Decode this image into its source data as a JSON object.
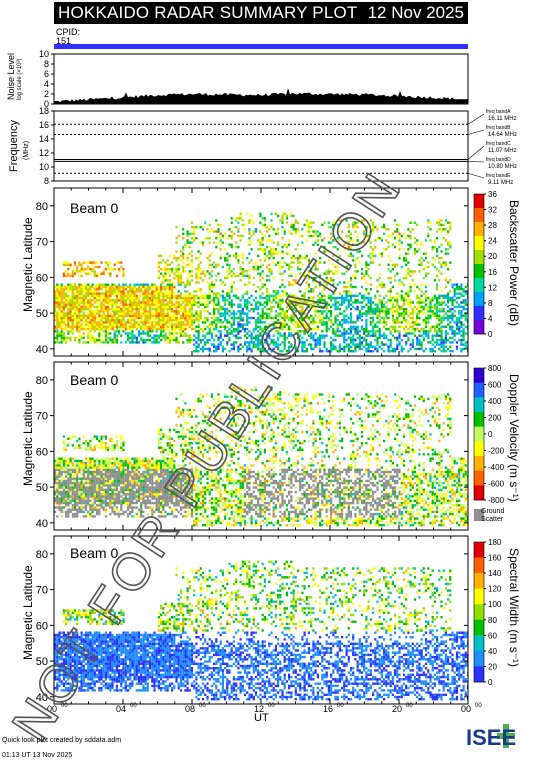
{
  "header": {
    "title": "HOKKAIDO RADAR SUMMARY PLOT",
    "date": "12 Nov 2025",
    "cpid_label": "CPID:",
    "cpid_value": "151"
  },
  "noise_panel": {
    "ylabel": "Noise Level",
    "ylabel_sub": "log scale (×10³)",
    "ticks": [
      "10",
      "8",
      "6",
      "4",
      "2",
      "0"
    ]
  },
  "freq_panel": {
    "ylabel": "Frequency",
    "ylabel_unit": "(MHz)",
    "ticks": [
      "18",
      "16",
      "14",
      "12",
      "10",
      "8"
    ],
    "bands": [
      {
        "name": "freq bandA",
        "value": "16.11 MHz"
      },
      {
        "name": "freq bandB",
        "value": "14.64 MHz"
      },
      {
        "name": "freq bandC",
        "value": "11.07 MHz"
      },
      {
        "name": "freq bandD",
        "value": "10.80 MHz"
      },
      {
        "name": "freq bandE",
        "value": "9.11 MHz"
      }
    ]
  },
  "panels": [
    {
      "beam": "Beam  0",
      "ylabel": "Magnetic Latitude",
      "colorbar_label": "Backscatter Power (dB)",
      "ticks": [
        "36",
        "32",
        "28",
        "24",
        "20",
        "16",
        "12",
        "8",
        "4",
        "0"
      ]
    },
    {
      "beam": "Beam  0",
      "ylabel": "Magnetic Latitude",
      "colorbar_label": "Doppler Velocity (m s⁻¹)",
      "ticks": [
        "800",
        "600",
        "400",
        "200",
        "0",
        "-200",
        "-400",
        "-600",
        "-800"
      ],
      "ground_label": "Ground",
      "ground_label2": "Scatter"
    },
    {
      "beam": "Beam  0",
      "ylabel": "Magnetic Latitude",
      "colorbar_label": "Spectral Width (m s⁻¹)",
      "ticks": [
        "180",
        "160",
        "140",
        "120",
        "100",
        "80",
        "60",
        "40",
        "20",
        "0"
      ]
    }
  ],
  "lat_ticks": [
    "80",
    "70",
    "60",
    "50",
    "40"
  ],
  "xaxis": {
    "ticks": [
      "00",
      "04",
      "08",
      "12",
      "16",
      "20",
      "00"
    ],
    "tick_sup": "00",
    "label": "UT"
  },
  "watermark": "NOT FOR PUBLICATION",
  "footer": {
    "line1": "Quick look plot created by sddata.adm",
    "line2": "01:13 UT 13 Nov 2025"
  },
  "logo": {
    "text": "ISEE"
  },
  "colors": {
    "power": [
      "#7800d8",
      "#3030ff",
      "#00a0ff",
      "#00d8a0",
      "#00c000",
      "#a0e000",
      "#ffff00",
      "#ffb000",
      "#ff6000",
      "#e00000"
    ],
    "velocity": [
      "#e00000",
      "#ff6000",
      "#ffb000",
      "#ffff00",
      "#c0ff60",
      "#00c000",
      "#00c0c0",
      "#2060ff",
      "#3000d0"
    ],
    "width": [
      "#3030ff",
      "#2090ff",
      "#00c0c0",
      "#00c000",
      "#90e000",
      "#ffff00",
      "#ffb000",
      "#ff6000",
      "#e00000"
    ],
    "ground": "#909090"
  },
  "chart_data": [
    {
      "type": "area",
      "title": "",
      "ylabel": "Noise Level",
      "xlim": [
        0,
        24
      ],
      "ylim": [
        0,
        10
      ],
      "x": [
        0,
        2,
        4,
        6,
        8,
        10,
        12,
        14,
        16,
        18,
        20,
        22,
        24
      ],
      "values": [
        0.5,
        0.9,
        1.3,
        1.8,
        2.0,
        1.9,
        1.8,
        2.1,
        2.0,
        1.9,
        1.6,
        1.3,
        0.9
      ]
    },
    {
      "type": "line",
      "ylabel": "Frequency",
      "ylim": [
        8,
        18
      ],
      "series": [
        {
          "name": "freq bandA",
          "values": [
            16.11
          ]
        },
        {
          "name": "freq bandB",
          "values": [
            14.64
          ]
        },
        {
          "name": "freq bandC",
          "values": [
            11.07
          ]
        },
        {
          "name": "freq bandD",
          "values": [
            10.8
          ]
        },
        {
          "name": "freq bandE",
          "values": [
            9.11
          ]
        }
      ]
    },
    {
      "type": "heatmap",
      "ylabel": "Magnetic Latitude",
      "colorbar": "Backscatter Power (dB)",
      "xlim": [
        0,
        24
      ],
      "ylim": [
        38,
        85
      ],
      "clim": [
        0,
        36
      ]
    },
    {
      "type": "heatmap",
      "ylabel": "Magnetic Latitude",
      "colorbar": "Doppler Velocity (m s⁻¹)",
      "xlim": [
        0,
        24
      ],
      "ylim": [
        38,
        85
      ],
      "clim": [
        -800,
        800
      ]
    },
    {
      "type": "heatmap",
      "ylabel": "Magnetic Latitude",
      "colorbar": "Spectral Width (m s⁻¹)",
      "xlim": [
        0,
        24
      ],
      "ylim": [
        38,
        85
      ],
      "clim": [
        0,
        180
      ]
    }
  ]
}
